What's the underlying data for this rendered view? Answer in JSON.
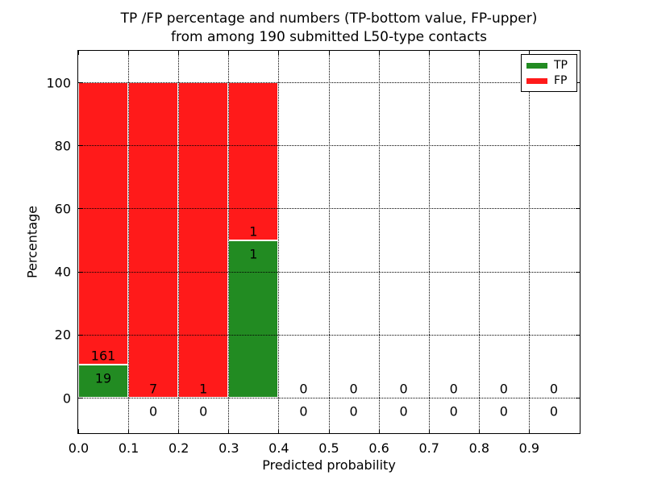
{
  "figure": {
    "title_line1": "TP /FP percentage and numbers (TP-bottom value, FP-upper)",
    "title_line2": "from among 190 submitted L50-type contacts"
  },
  "chart_data": {
    "type": "bar",
    "subtype": "stacked-percentage-histogram",
    "title": "TP /FP percentage and numbers (TP-bottom value, FP-upper) from among 190 submitted L50-type contacts",
    "xlabel": "Predicted probability",
    "ylabel": "Percentage",
    "xlim": [
      0.0,
      1.0
    ],
    "ylim": [
      -11,
      110
    ],
    "x_ticks": [
      "0.0",
      "0.1",
      "0.2",
      "0.3",
      "0.4",
      "0.5",
      "0.6",
      "0.7",
      "0.8",
      "0.9"
    ],
    "y_ticks": [
      "0",
      "20",
      "40",
      "60",
      "80",
      "100"
    ],
    "grid": "dotted black, both axes, drawn on top of bars",
    "legend_position": "upper right",
    "legend_entries": [
      {
        "label": "TP",
        "color": "#228b22"
      },
      {
        "label": "FP",
        "color": "#ff1a1a"
      }
    ],
    "total_submitted": 190,
    "bin_width": 0.1,
    "annotation_rule": "FP count printed above TP count for each bin",
    "bins": [
      {
        "x_start": 0.0,
        "x_end": 0.1,
        "tp": 19,
        "fp": 161
      },
      {
        "x_start": 0.1,
        "x_end": 0.2,
        "tp": 0,
        "fp": 7
      },
      {
        "x_start": 0.2,
        "x_end": 0.3,
        "tp": 0,
        "fp": 1
      },
      {
        "x_start": 0.3,
        "x_end": 0.4,
        "tp": 1,
        "fp": 1
      },
      {
        "x_start": 0.4,
        "x_end": 0.5,
        "tp": 0,
        "fp": 0
      },
      {
        "x_start": 0.5,
        "x_end": 0.6,
        "tp": 0,
        "fp": 0
      },
      {
        "x_start": 0.6,
        "x_end": 0.7,
        "tp": 0,
        "fp": 0
      },
      {
        "x_start": 0.7,
        "x_end": 0.8,
        "tp": 0,
        "fp": 0
      },
      {
        "x_start": 0.8,
        "x_end": 0.9,
        "tp": 0,
        "fp": 0
      },
      {
        "x_start": 0.9,
        "x_end": 1.0,
        "tp": 0,
        "fp": 0
      }
    ],
    "colors": {
      "tp": "#228b22",
      "fp": "#ff1a1a",
      "grid": "#000000",
      "spine": "#000000",
      "background": "#ffffff"
    }
  }
}
